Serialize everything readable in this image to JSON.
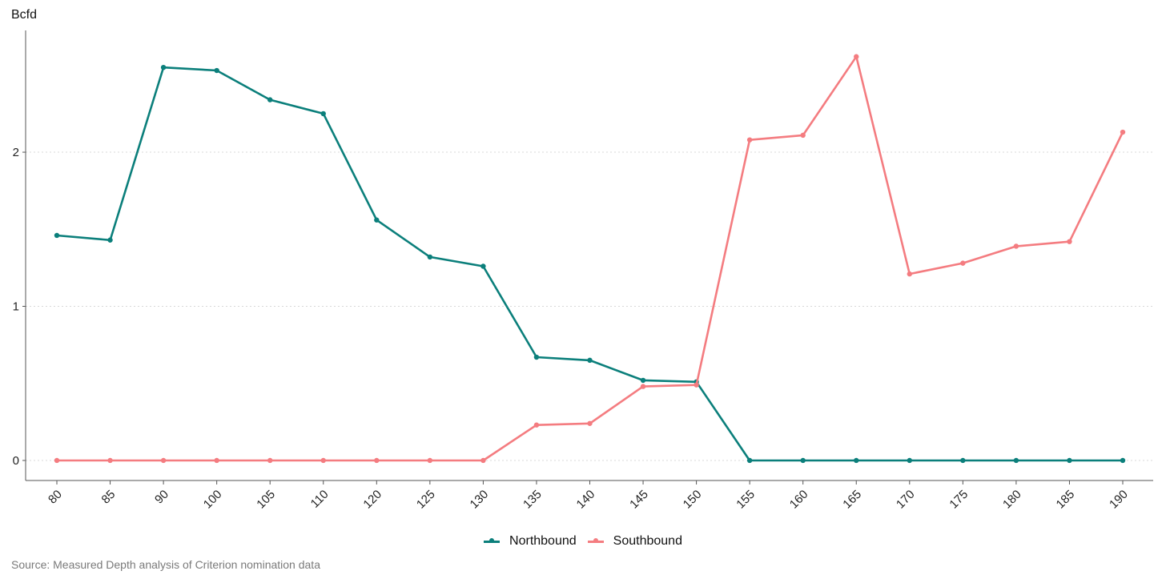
{
  "chart_data": {
    "type": "line",
    "ylabel": "Bcfd",
    "xlabel": "",
    "x": [
      "80",
      "85",
      "90",
      "100",
      "105",
      "110",
      "120",
      "125",
      "130",
      "135",
      "140",
      "145",
      "150",
      "155",
      "160",
      "165",
      "170",
      "175",
      "180",
      "185",
      "190"
    ],
    "ylim": [
      -0.13,
      2.79
    ],
    "yticks": [
      0,
      1,
      2
    ],
    "grid": "horizontal dotted",
    "legend_position": "bottom",
    "series": [
      {
        "name": "Northbound",
        "color": "#0b7f7b",
        "values": [
          1.46,
          1.43,
          2.55,
          2.53,
          2.34,
          2.25,
          1.56,
          1.32,
          1.26,
          0.67,
          0.65,
          0.52,
          0.51,
          0,
          0,
          0,
          0,
          0,
          0,
          0,
          0
        ]
      },
      {
        "name": "Southbound",
        "color": "#f47c80",
        "values": [
          0,
          0,
          0,
          0,
          0,
          0,
          0,
          0,
          0,
          0.23,
          0.24,
          0.48,
          0.49,
          2.08,
          2.11,
          2.62,
          1.21,
          1.28,
          1.39,
          1.42,
          2.13
        ]
      }
    ]
  },
  "source": "Source: Measured Depth analysis of Criterion nomination data"
}
